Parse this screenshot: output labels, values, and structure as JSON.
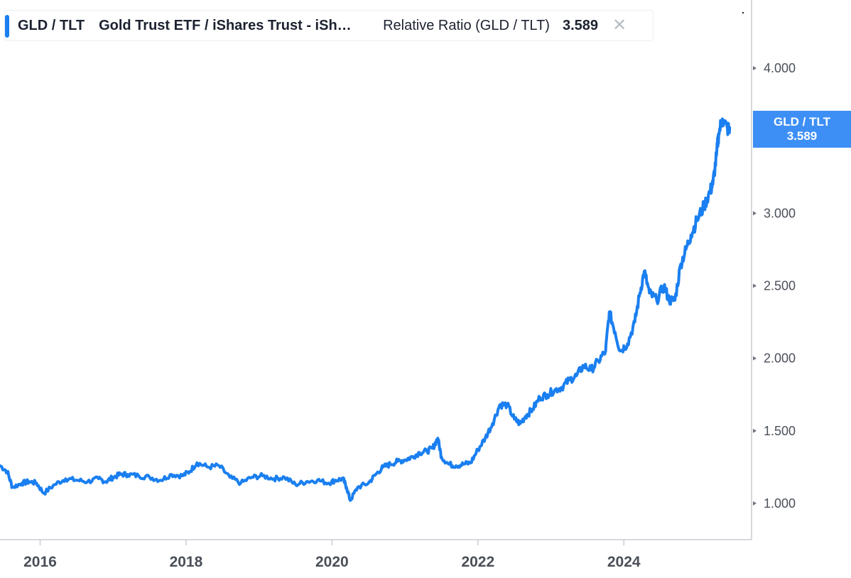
{
  "legend": {
    "symbol": "GLD / TLT",
    "name": "Gold Trust ETF / iShares Trust - iSh…",
    "ratio_label": "Relative Ratio (GLD / TLT)",
    "value": "3.589",
    "close_glyph": "✕",
    "close_icon": "close-icon",
    "accent_color": "#1a7ff0"
  },
  "price_tag": {
    "symbol": "GLD / TLT",
    "value": "3.589"
  },
  "chart_data": {
    "type": "line",
    "title": "",
    "xlabel": "",
    "ylabel": "",
    "line_color": "#1a7ff0",
    "grid": false,
    "legend_position": "top-left",
    "x_tick_labels": [
      "2016",
      "2018",
      "2020",
      "2022",
      "2024"
    ],
    "y_tick_labels": [
      "1.000",
      "1.500",
      "2.000",
      "2.500",
      "3.000",
      "4.000"
    ],
    "xlim": [
      2015.45,
      2025.75
    ],
    "ylim": [
      0.75,
      4.47
    ],
    "series": [
      {
        "name": "GLD / TLT",
        "x": [
          2015.45,
          2015.55,
          2015.62,
          2015.75,
          2015.85,
          2015.95,
          2016.05,
          2016.2,
          2016.35,
          2016.5,
          2016.65,
          2016.8,
          2016.9,
          2017.0,
          2017.1,
          2017.2,
          2017.35,
          2017.5,
          2017.65,
          2017.8,
          2017.95,
          2018.05,
          2018.15,
          2018.3,
          2018.45,
          2018.6,
          2018.75,
          2018.9,
          2019.05,
          2019.2,
          2019.35,
          2019.5,
          2019.65,
          2019.8,
          2019.95,
          2020.05,
          2020.15,
          2020.2,
          2020.25,
          2020.35,
          2020.5,
          2020.6,
          2020.7,
          2020.8,
          2020.9,
          2021.0,
          2021.1,
          2021.2,
          2021.3,
          2021.38,
          2021.45,
          2021.5,
          2021.6,
          2021.7,
          2021.8,
          2021.9,
          2022.0,
          2022.1,
          2022.2,
          2022.3,
          2022.4,
          2022.5,
          2022.58,
          2022.65,
          2022.75,
          2022.85,
          2022.95,
          2023.05,
          2023.15,
          2023.25,
          2023.35,
          2023.45,
          2023.55,
          2023.65,
          2023.75,
          2023.8,
          2023.88,
          2023.95,
          2024.05,
          2024.15,
          2024.22,
          2024.28,
          2024.35,
          2024.45,
          2024.55,
          2024.62,
          2024.7,
          2024.78,
          2024.85,
          2024.92,
          2025.0,
          2025.1,
          2025.18,
          2025.22,
          2025.27,
          2025.3,
          2025.35,
          2025.42,
          2025.45
        ],
        "values": [
          1.26,
          1.22,
          1.11,
          1.14,
          1.15,
          1.14,
          1.07,
          1.13,
          1.17,
          1.16,
          1.15,
          1.17,
          1.15,
          1.18,
          1.2,
          1.2,
          1.19,
          1.18,
          1.16,
          1.2,
          1.19,
          1.22,
          1.28,
          1.25,
          1.26,
          1.18,
          1.14,
          1.18,
          1.19,
          1.17,
          1.18,
          1.13,
          1.15,
          1.16,
          1.14,
          1.16,
          1.17,
          1.11,
          1.02,
          1.11,
          1.14,
          1.2,
          1.25,
          1.27,
          1.29,
          1.3,
          1.32,
          1.35,
          1.36,
          1.38,
          1.45,
          1.32,
          1.27,
          1.26,
          1.27,
          1.28,
          1.37,
          1.45,
          1.55,
          1.68,
          1.68,
          1.58,
          1.55,
          1.6,
          1.65,
          1.73,
          1.75,
          1.78,
          1.8,
          1.85,
          1.88,
          1.95,
          1.92,
          1.98,
          2.05,
          2.32,
          2.18,
          2.05,
          2.1,
          2.25,
          2.45,
          2.6,
          2.45,
          2.4,
          2.5,
          2.4,
          2.4,
          2.65,
          2.75,
          2.85,
          2.95,
          3.05,
          3.15,
          3.2,
          3.4,
          3.55,
          3.65,
          3.58,
          3.59
        ]
      }
    ]
  }
}
